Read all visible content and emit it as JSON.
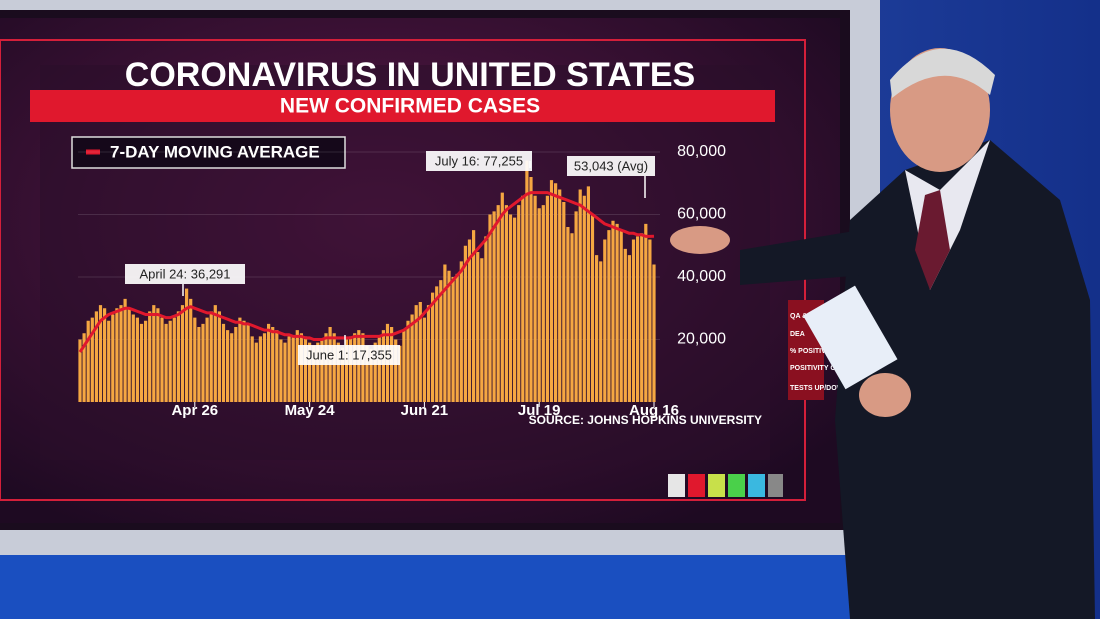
{
  "chart_data": {
    "type": "bar",
    "title": "CORONAVIRUS IN UNITED STATES",
    "subtitle": "NEW CONFIRMED CASES",
    "source": "SOURCE: JOHNS HOPKINS UNIVERSITY",
    "categories": [
      null,
      null,
      null,
      null,
      null,
      null,
      null,
      null,
      null,
      null,
      null,
      null,
      null,
      null,
      null,
      null,
      null,
      null,
      null,
      null,
      null,
      null,
      null,
      null,
      null,
      null,
      null,
      null,
      "Apr 26",
      null,
      null,
      null,
      null,
      null,
      null,
      null,
      null,
      null,
      null,
      null,
      null,
      null,
      null,
      null,
      null,
      null,
      null,
      null,
      null,
      null,
      null,
      null,
      null,
      null,
      null,
      null,
      "May 24",
      null,
      null,
      null,
      null,
      null,
      null,
      null,
      null,
      null,
      null,
      null,
      null,
      null,
      null,
      null,
      null,
      null,
      null,
      null,
      null,
      null,
      null,
      null,
      null,
      null,
      null,
      null,
      "Jun 21",
      null,
      null,
      null,
      null,
      null,
      null,
      null,
      null,
      null,
      null,
      null,
      null,
      null,
      null,
      null,
      null,
      null,
      null,
      null,
      null,
      null,
      null,
      null,
      null,
      null,
      null,
      null,
      "Jul 19",
      null,
      null,
      null,
      null,
      null,
      null,
      null,
      null,
      null,
      null,
      null,
      null,
      null,
      null,
      null,
      null,
      null,
      null,
      null,
      null,
      null,
      null,
      null,
      null,
      null,
      null,
      null,
      "Aug 16"
    ],
    "series": [
      {
        "name": "New confirmed cases",
        "color": "#f5a742",
        "values": [
          20000,
          22000,
          26000,
          27000,
          29000,
          31000,
          30000,
          26000,
          28000,
          30000,
          31000,
          33000,
          30000,
          28000,
          27000,
          25000,
          26000,
          29000,
          31000,
          30000,
          27000,
          25000,
          26000,
          27000,
          29000,
          31000,
          36291,
          33000,
          27000,
          24000,
          25000,
          27000,
          29000,
          31000,
          29000,
          25000,
          23000,
          22000,
          24000,
          27000,
          26000,
          25000,
          21000,
          19000,
          21000,
          22000,
          25000,
          24000,
          23000,
          20000,
          19000,
          21000,
          21000,
          23000,
          22000,
          21000,
          19000,
          18000,
          19000,
          20000,
          22000,
          24000,
          22000,
          19000,
          17355,
          20000,
          21000,
          22000,
          23000,
          22000,
          18000,
          17000,
          19000,
          21000,
          23000,
          25000,
          24000,
          20000,
          18000,
          23000,
          26000,
          28000,
          31000,
          32000,
          27000,
          31000,
          35000,
          37000,
          39000,
          44000,
          42000,
          40000,
          41000,
          45000,
          50000,
          52000,
          55000,
          48000,
          46000,
          53000,
          60000,
          61000,
          63000,
          67000,
          63000,
          60000,
          59000,
          63000,
          66000,
          77255,
          72000,
          66000,
          62000,
          63000,
          66000,
          71000,
          70000,
          68000,
          64000,
          56000,
          54000,
          61000,
          68000,
          66000,
          69000,
          60000,
          47000,
          45000,
          52000,
          55000,
          58000,
          57000,
          55000,
          49000,
          47000,
          52000,
          53000,
          54000,
          57000,
          52000,
          44000
        ]
      },
      {
        "name": "7-DAY MOVING AVERAGE",
        "color": "#e0182d",
        "values": [
          16000,
          18000,
          20000,
          22000,
          24000,
          26000,
          27000,
          28000,
          28500,
          29000,
          29500,
          30000,
          30000,
          29500,
          29000,
          28500,
          28000,
          28000,
          28000,
          28000,
          27500,
          27000,
          27000,
          27500,
          28000,
          29000,
          30000,
          30500,
          30000,
          29500,
          29000,
          28500,
          28500,
          28000,
          27500,
          27000,
          26500,
          26000,
          25500,
          25500,
          25000,
          25000,
          24500,
          24000,
          23500,
          23000,
          23000,
          22500,
          22500,
          22000,
          21500,
          21500,
          21000,
          21000,
          21000,
          20500,
          20500,
          20000,
          20000,
          20000,
          20500,
          20500,
          20500,
          20500,
          20500,
          20500,
          20500,
          21000,
          21000,
          21000,
          21000,
          21000,
          21000,
          21000,
          21500,
          21500,
          21500,
          22000,
          22500,
          23000,
          24000,
          25000,
          26000,
          27000,
          28500,
          30000,
          31500,
          33000,
          34500,
          36000,
          37500,
          39000,
          40500,
          42000,
          44000,
          46000,
          47500,
          49000,
          50500,
          52000,
          54000,
          56000,
          58000,
          60000,
          61500,
          62500,
          63500,
          64500,
          65500,
          66500,
          67000,
          67000,
          67000,
          67000,
          67000,
          66500,
          66000,
          65500,
          65000,
          64500,
          64000,
          63500,
          63000,
          62000,
          61000,
          60000,
          59000,
          58000,
          57000,
          56500,
          56000,
          55500,
          55000,
          54500,
          54000,
          54000,
          53500,
          53500,
          53000,
          53000,
          53043
        ]
      }
    ],
    "ylim": [
      0,
      80000
    ],
    "yticks": [
      {
        "value": 20000,
        "label": "20,000"
      },
      {
        "value": 40000,
        "label": "40,000"
      },
      {
        "value": 60000,
        "label": "60,000"
      },
      {
        "value": 80000,
        "label": "80,000"
      }
    ],
    "annotations": [
      "April 24: 36,291",
      "June 1: 17,355",
      "July 16: 77,255",
      "53,043 (Avg)"
    ]
  },
  "side_menu": [
    "QA & T",
    "DEA",
    "% POSITIVE",
    "POSITIVITY CHANGE",
    "TESTS UP/DOWN"
  ]
}
